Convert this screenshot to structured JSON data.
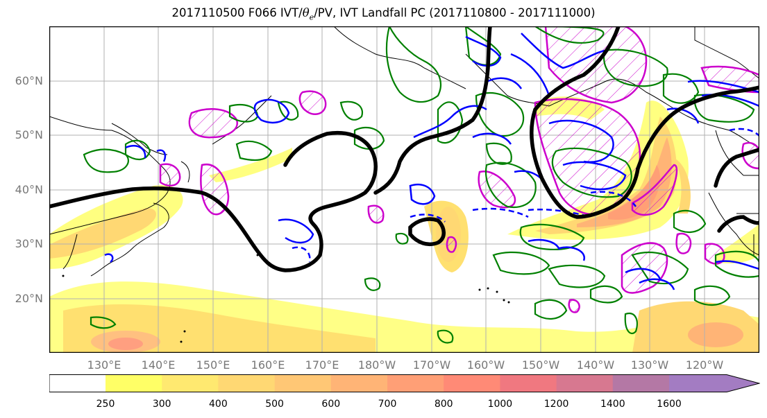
{
  "title": {
    "prefix": "2017110500 F066 IVT/",
    "theta_symbol": "θ",
    "theta_sub": "e",
    "suffix": "/PV, IVT Landfall PC (2017110800 - 2017111000)"
  },
  "map": {
    "lat_labels": [
      {
        "text": "60°N",
        "lat": 60
      },
      {
        "text": "50°N",
        "lat": 50
      },
      {
        "text": "40°N",
        "lat": 40
      },
      {
        "text": "30°N",
        "lat": 30
      },
      {
        "text": "20°N",
        "lat": 20
      }
    ],
    "lon_labels": [
      {
        "text": "130°E",
        "lon": 130
      },
      {
        "text": "140°E",
        "lon": 140
      },
      {
        "text": "150°E",
        "lon": 150
      },
      {
        "text": "160°E",
        "lon": 160
      },
      {
        "text": "170°E",
        "lon": 170
      },
      {
        "text": "180°W",
        "lon": 180
      },
      {
        "text": "170°W",
        "lon": 190
      },
      {
        "text": "160°W",
        "lon": 200
      },
      {
        "text": "150°W",
        "lon": 210
      },
      {
        "text": "140°W",
        "lon": 220
      },
      {
        "text": "130°W",
        "lon": 230
      },
      {
        "text": "120°W",
        "lon": 240
      }
    ],
    "lon_range": [
      120,
      250
    ],
    "lat_range": [
      10,
      70
    ],
    "grid": true
  },
  "colorbar": {
    "levels": [
      "250",
      "300",
      "400",
      "500",
      "600",
      "700",
      "800",
      "1000",
      "1200",
      "1400",
      "1600"
    ],
    "colors": [
      "#ffff66",
      "#ffe970",
      "#ffd873",
      "#ffc775",
      "#ffb476",
      "#ff9f76",
      "#ff8a76",
      "#f07880",
      "#d77890",
      "#b478a5",
      "#a37cc2"
    ],
    "extend": "max"
  },
  "colors": {
    "ivt_contour": "#000000",
    "theta_e": "#0000ff",
    "pv": "#008000",
    "pc_hatch": "#cc00cc"
  }
}
